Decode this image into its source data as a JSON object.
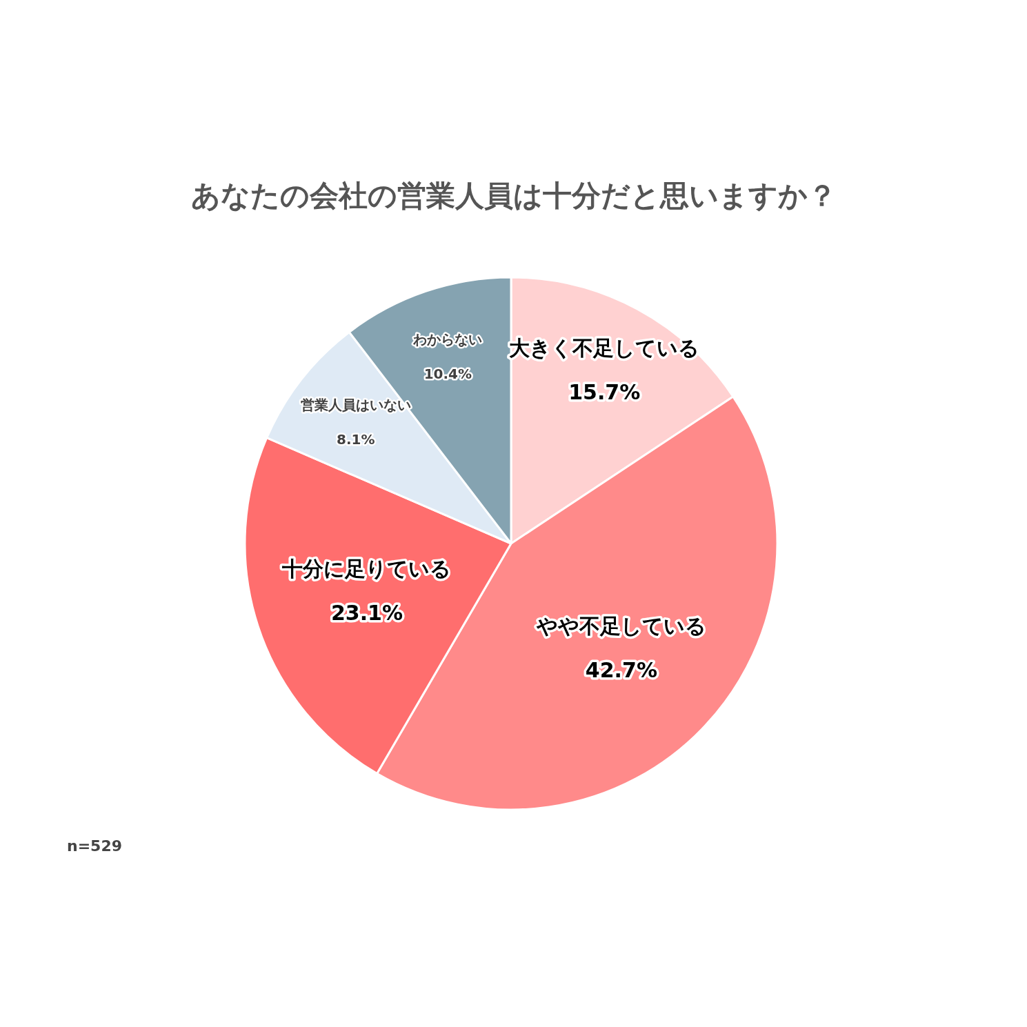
{
  "chart_data": {
    "type": "pie",
    "title": "あなたの会社の営業人員は十分だと思いますか？",
    "categories": [
      "大きく不足している",
      "やや不足している",
      "十分に足りている",
      "営業人員はいない",
      "わからない"
    ],
    "values": [
      15.7,
      42.7,
      23.1,
      8.1,
      10.4
    ],
    "colors": [
      "#ffd1d1",
      "#ff8a8a",
      "#ff6e6e",
      "#dfeaf5",
      "#85a3b1"
    ],
    "value_labels": [
      "15.7%",
      "42.7%",
      "23.1%",
      "8.1%",
      "10.4%"
    ],
    "annotations": [
      "n=529"
    ]
  }
}
